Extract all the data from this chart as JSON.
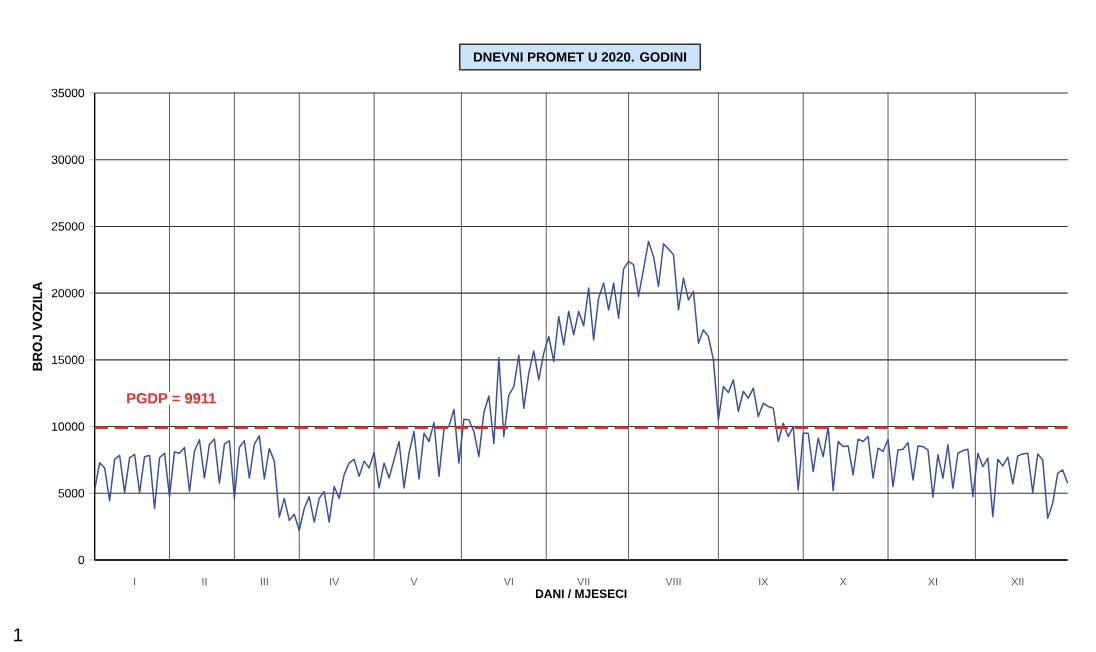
{
  "chart_data": {
    "type": "line",
    "title": "DNEVNI PROMET U 2020. GODINI",
    "xlabel": "DANI / MJESECI",
    "ylabel": "BROJ VOZILA",
    "categories": [
      null,
      null,
      null,
      null,
      null,
      null,
      null,
      null,
      "I",
      null,
      null,
      null,
      null,
      null,
      null,
      null,
      null,
      null,
      null,
      null,
      null,
      null,
      "II",
      null,
      null,
      null,
      null,
      null,
      null,
      null,
      null,
      null,
      null,
      null,
      "III",
      null,
      null,
      null,
      null,
      null,
      null,
      null,
      null,
      null,
      null,
      null,
      null,
      null,
      "IV",
      null,
      null,
      null,
      null,
      null,
      null,
      null,
      null,
      null,
      null,
      null,
      null,
      null,
      null,
      null,
      "V",
      null,
      null,
      null,
      null,
      null,
      null,
      null,
      null,
      null,
      null,
      null,
      null,
      null,
      null,
      null,
      null,
      null,
      null,
      "VI",
      null,
      null,
      null,
      null,
      null,
      null,
      null,
      null,
      null,
      null,
      null,
      null,
      null,
      null,
      "VII",
      null,
      null,
      null,
      null,
      null,
      null,
      null,
      null,
      null,
      null,
      null,
      null,
      null,
      null,
      null,
      null,
      null,
      "VIII",
      null,
      null,
      null,
      null,
      null,
      null,
      null,
      null,
      null,
      null,
      null,
      null,
      null,
      null,
      null,
      null,
      null,
      "IX",
      null,
      null,
      null,
      null,
      null,
      null,
      null,
      null,
      null,
      null,
      null,
      null,
      null,
      null,
      null,
      "X",
      null,
      null,
      null,
      null,
      null,
      null,
      null,
      null,
      null,
      null,
      null,
      null,
      null,
      null,
      null,
      null,
      null,
      "XI",
      null,
      null,
      null,
      null,
      null,
      null,
      null,
      null,
      null,
      null,
      null,
      null,
      null,
      null,
      null,
      null,
      "XII",
      null,
      null,
      null,
      null,
      null,
      null,
      null,
      null,
      null,
      null
    ],
    "series": [
      {
        "color": "#3a4fa0",
        "values": [
          5250,
          7290,
          6900,
          4440,
          7540,
          7840,
          5050,
          7660,
          7920,
          5050,
          7740,
          7840,
          3860,
          7660,
          8000,
          4750,
          8100,
          8000,
          8430,
          5130,
          8170,
          9010,
          6140,
          8680,
          9060,
          5760,
          8680,
          8930,
          4620,
          8430,
          8930,
          6140,
          8680,
          9310,
          6070,
          8350,
          7410,
          3220,
          4620,
          2970,
          3430,
          2210,
          3860,
          4750,
          2840,
          4620,
          5130,
          2840,
          5510,
          4620,
          6400,
          7280,
          7540,
          6270,
          7410,
          6900,
          8050,
          5400,
          7260,
          6140,
          7510,
          8880,
          5400,
          8010,
          9630,
          6070,
          9500,
          8880,
          10300,
          6270,
          9800,
          10000,
          11290,
          7260,
          10550,
          10500,
          9630,
          7760,
          11040,
          12290,
          8710,
          15180,
          9250,
          12360,
          12990,
          15350,
          11370,
          13980,
          15670,
          13500,
          15500,
          16750,
          14880,
          18250,
          16130,
          18630,
          16880,
          18630,
          17550,
          20380,
          16500,
          19630,
          20750,
          18750,
          20750,
          18130,
          21800,
          22380,
          22130,
          19750,
          21800,
          23880,
          22750,
          20500,
          23700,
          23300,
          22880,
          18750,
          21130,
          19500,
          20130,
          16250,
          17250,
          16750,
          15000,
          10500,
          13000,
          12550,
          13500,
          11130,
          12630,
          12130,
          12880,
          10750,
          11750,
          11500,
          11380,
          8880,
          10250,
          9250,
          10000,
          5250,
          9500,
          9500,
          6630,
          9130,
          7750,
          10000,
          5200,
          8880,
          8500,
          8550,
          6380,
          9050,
          8880,
          9250,
          6130,
          8380,
          8130,
          9050,
          5500,
          8250,
          8300,
          8800,
          6000,
          8550,
          8500,
          8250,
          4700,
          7880,
          6130,
          8630,
          5380,
          8000,
          8200,
          8300,
          4750,
          8000,
          7000,
          7630,
          3250,
          7550,
          7050,
          7700,
          5700,
          7800,
          7950,
          8000,
          5050,
          7950,
          7500,
          3130,
          4250,
          6500,
          6750,
          5750
        ]
      }
    ],
    "ylim": [
      0,
      35000
    ],
    "yticks": [
      0,
      5000,
      10000,
      15000,
      20000,
      25000,
      30000,
      35000
    ],
    "grid": true,
    "marker": "none",
    "line_style": "solid",
    "ref_lines": [
      {
        "axis": "y",
        "value": 9911,
        "label": "PGDP = 9911",
        "color": "#e03030",
        "line_style": "dashed"
      }
    ],
    "annotations": [
      "1"
    ]
  }
}
